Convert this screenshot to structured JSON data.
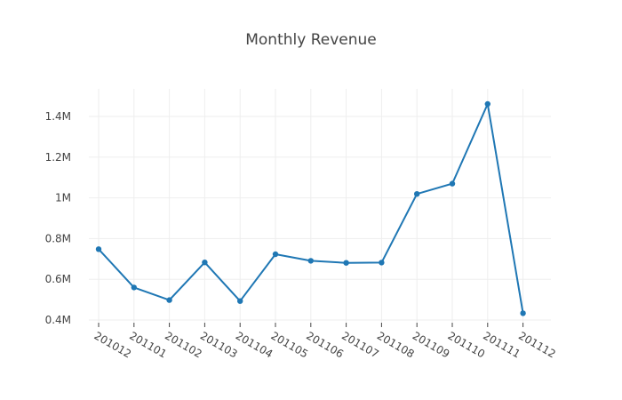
{
  "chart_data": {
    "type": "line",
    "title": "Monthly Revenue",
    "xlabel": "",
    "ylabel": "",
    "categories": [
      "201012",
      "201101",
      "201102",
      "201103",
      "201104",
      "201105",
      "201106",
      "201107",
      "201108",
      "201109",
      "201110",
      "201111",
      "201112"
    ],
    "values": [
      748000,
      560000,
      498000,
      683000,
      493000,
      723000,
      691000,
      681000,
      682000,
      1019000,
      1070000,
      1461000,
      433000
    ],
    "ylim": [
      0.4,
      1.5
    ],
    "yticks": [
      0.4,
      0.6,
      0.8,
      1.0,
      1.2,
      1.4
    ],
    "ytick_labels": [
      "0.4M",
      "0.6M",
      "0.8M",
      "1M",
      "1.2M",
      "1.4M"
    ],
    "grid": true,
    "legend": "none",
    "color": "#1f77b4"
  }
}
